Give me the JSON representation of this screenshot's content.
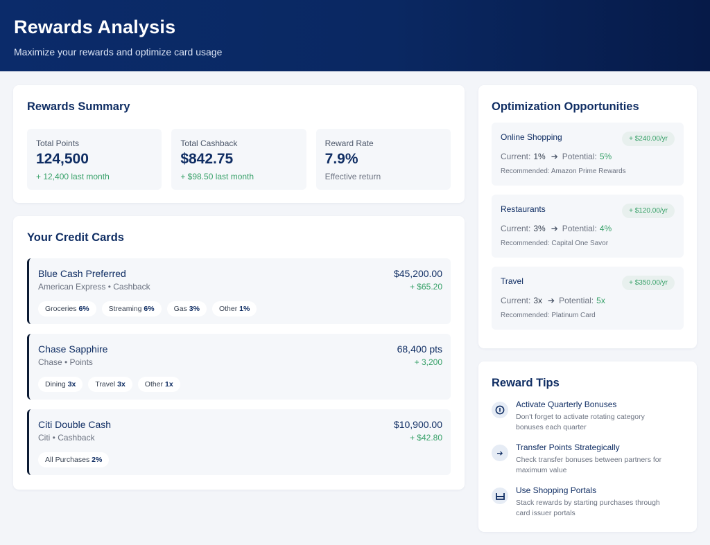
{
  "header": {
    "title": "Rewards Analysis",
    "subtitle": "Maximize your rewards and optimize card usage"
  },
  "summary": {
    "title": "Rewards Summary",
    "stats": [
      {
        "label": "Total Points",
        "value": "124,500",
        "change": "+ 12,400 last month"
      },
      {
        "label": "Total Cashback",
        "value": "$842.75",
        "change": "+ $98.50 last month"
      },
      {
        "label": "Reward Rate",
        "value": "7.9%",
        "change": "Effective return"
      }
    ]
  },
  "cards": {
    "title": "Your Credit Cards",
    "items": [
      {
        "name": "Blue Cash Preferred",
        "issuer": "American Express • Cashback",
        "amount": "$45,200.00",
        "earned": "+ $65.20",
        "categories": [
          {
            "label": "Groceries",
            "rate": "6%"
          },
          {
            "label": "Streaming",
            "rate": "6%"
          },
          {
            "label": "Gas",
            "rate": "3%"
          },
          {
            "label": "Other",
            "rate": "1%"
          }
        ]
      },
      {
        "name": "Chase Sapphire",
        "issuer": "Chase • Points",
        "amount": "68,400 pts",
        "earned": "+ 3,200",
        "categories": [
          {
            "label": "Dining",
            "rate": "3x"
          },
          {
            "label": "Travel",
            "rate": "3x"
          },
          {
            "label": "Other",
            "rate": "1x"
          }
        ]
      },
      {
        "name": "Citi Double Cash",
        "issuer": "Citi • Cashback",
        "amount": "$10,900.00",
        "earned": "+ $42.80",
        "categories": [
          {
            "label": "All Purchases",
            "rate": "2%"
          }
        ]
      }
    ]
  },
  "optimization": {
    "title": "Optimization Opportunities",
    "current_label": "Current:",
    "potential_label": "Potential:",
    "items": [
      {
        "name": "Online Shopping",
        "badge": "+ $240.00/yr",
        "current": "1%",
        "potential": "5%",
        "recommendation": "Recommended: Amazon Prime Rewards"
      },
      {
        "name": "Restaurants",
        "badge": "+ $120.00/yr",
        "current": "3%",
        "potential": "4%",
        "recommendation": "Recommended: Capital One Savor"
      },
      {
        "name": "Travel",
        "badge": "+ $350.00/yr",
        "current": "3x",
        "potential": "5x",
        "recommendation": "Recommended: Platinum Card"
      }
    ]
  },
  "tips": {
    "title": "Reward Tips",
    "items": [
      {
        "icon": "info-icon",
        "title": "Activate Quarterly Bonuses",
        "desc": "Don't forget to activate rotating category bonuses each quarter"
      },
      {
        "icon": "arrow-right-icon",
        "title": "Transfer Points Strategically",
        "desc": "Check transfer bonuses between partners for maximum value"
      },
      {
        "icon": "shopping-bag-icon",
        "title": "Use Shopping Portals",
        "desc": "Stack rewards by starting purchases through card issuer portals"
      }
    ]
  }
}
